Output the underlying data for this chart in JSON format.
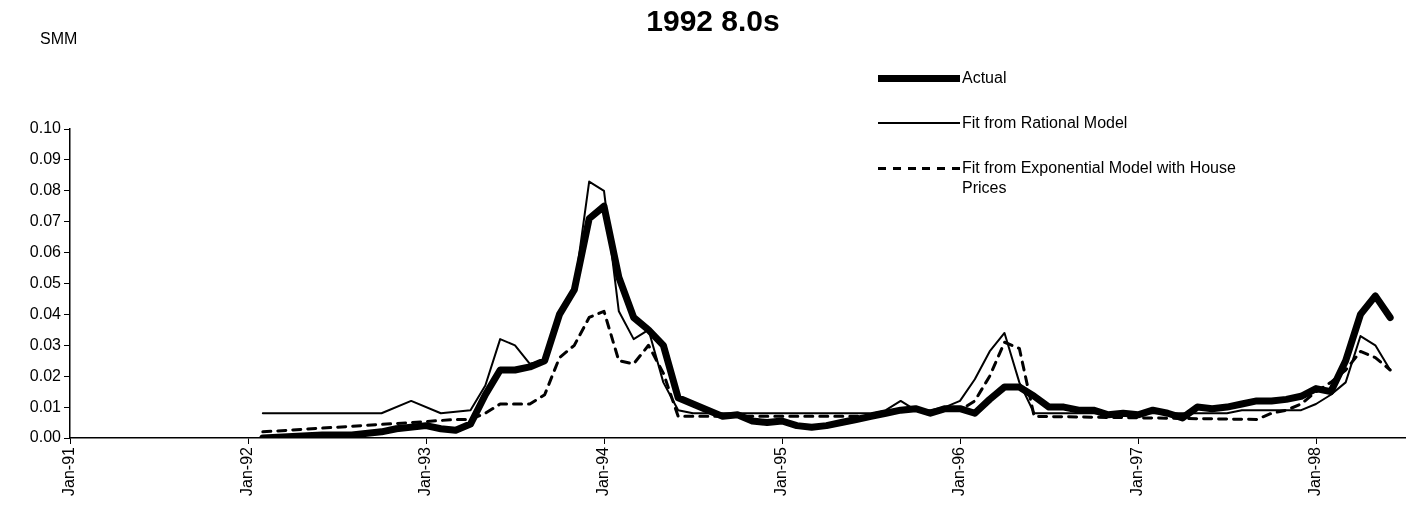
{
  "chart_data": {
    "type": "line",
    "title": "1992 8.0s",
    "ylabel": "SMM",
    "xlim": [
      "1991-01",
      "1998-07"
    ],
    "xticks": [
      {
        "value": "1991-01",
        "label": "Jan-91"
      },
      {
        "value": "1992-01",
        "label": "Jan-92"
      },
      {
        "value": "1993-01",
        "label": "Jan-93"
      },
      {
        "value": "1994-01",
        "label": "Jan-94"
      },
      {
        "value": "1995-01",
        "label": "Jan-95"
      },
      {
        "value": "1996-01",
        "label": "Jan-96"
      },
      {
        "value": "1997-01",
        "label": "Jan-97"
      },
      {
        "value": "1998-01",
        "label": "Jan-98"
      }
    ],
    "ylim": [
      0,
      0.1
    ],
    "yticks": [
      {
        "value": 0,
        "label": "0.00"
      },
      {
        "value": 0.01,
        "label": "0.01"
      },
      {
        "value": 0.02,
        "label": "0.02"
      },
      {
        "value": 0.03,
        "label": "0.03"
      },
      {
        "value": 0.04,
        "label": "0.04"
      },
      {
        "value": 0.05,
        "label": "0.05"
      },
      {
        "value": 0.06,
        "label": "0.06"
      },
      {
        "value": 0.07,
        "label": "0.07"
      },
      {
        "value": 0.08,
        "label": "0.08"
      },
      {
        "value": 0.09,
        "label": "0.09"
      },
      {
        "value": 0.1,
        "label": "0.10"
      }
    ],
    "legend": "top right",
    "marker": "none",
    "series": [
      {
        "name": "Actual",
        "color": "#000000",
        "line_style": "solid",
        "x": [
          "1992-02",
          "1992-04",
          "1992-06",
          "1992-08",
          "1992-10",
          "1992-11",
          "1993-01",
          "1993-02",
          "1993-03",
          "1993-04",
          "1993-05",
          "1993-06",
          "1993-07",
          "1993-08",
          "1993-09",
          "1993-10",
          "1993-11",
          "1993-12",
          "1994-01",
          "1994-02",
          "1994-03",
          "1994-04",
          "1994-05",
          "1994-06",
          "1994-07",
          "1994-08",
          "1994-09",
          "1994-10",
          "1994-11",
          "1994-12",
          "1995-01",
          "1995-02",
          "1995-03",
          "1995-04",
          "1995-05",
          "1995-06",
          "1995-07",
          "1995-08",
          "1995-09",
          "1995-10",
          "1995-11",
          "1995-12",
          "1996-01",
          "1996-02",
          "1996-03",
          "1996-04",
          "1996-05",
          "1996-06",
          "1996-07",
          "1996-08",
          "1996-09",
          "1996-10",
          "1996-11",
          "1996-12",
          "1997-01",
          "1997-02",
          "1997-03",
          "1997-04",
          "1997-05",
          "1997-06",
          "1997-07",
          "1997-08",
          "1997-09",
          "1997-10",
          "1997-11",
          "1997-12",
          "1998-01",
          "1998-02",
          "1998-03",
          "1998-04",
          "1998-05",
          "1998-06"
        ],
        "values": [
          0.0,
          0.0005,
          0.001,
          0.001,
          0.002,
          0.003,
          0.004,
          0.003,
          0.0025,
          0.0045,
          0.014,
          0.022,
          0.022,
          0.023,
          0.025,
          0.04,
          0.048,
          0.071,
          0.075,
          0.052,
          0.039,
          0.035,
          0.03,
          0.013,
          0.011,
          0.009,
          0.007,
          0.0075,
          0.0055,
          0.005,
          0.0055,
          0.004,
          0.0035,
          0.004,
          0.005,
          0.006,
          0.007,
          0.008,
          0.009,
          0.0095,
          0.008,
          0.0095,
          0.0095,
          0.008,
          0.0125,
          0.0165,
          0.0165,
          0.0135,
          0.01,
          0.01,
          0.009,
          0.009,
          0.0075,
          0.008,
          0.0075,
          0.009,
          0.008,
          0.0065,
          0.01,
          0.0095,
          0.01,
          0.011,
          0.012,
          0.012,
          0.0125,
          0.0135,
          0.016,
          0.015,
          0.025,
          0.04,
          0.046,
          0.039
        ]
      },
      {
        "name": "Fit from Rational Model",
        "color": "#000000",
        "line_style": "solid",
        "x": [
          "1992-02",
          "1992-10",
          "1992-12",
          "1993-02",
          "1993-04",
          "1993-05",
          "1993-06",
          "1993-07",
          "1993-08",
          "1993-09",
          "1993-10",
          "1993-11",
          "1993-12",
          "1994-01",
          "1994-02",
          "1994-03",
          "1994-04",
          "1994-05",
          "1994-06",
          "1994-07",
          "1995-07",
          "1995-08",
          "1995-09",
          "1995-10",
          "1995-11",
          "1995-12",
          "1996-01",
          "1996-02",
          "1996-03",
          "1996-04",
          "1996-05",
          "1996-06",
          "1997-07",
          "1997-08",
          "1997-12",
          "1998-01",
          "1998-02",
          "1998-03",
          "1998-04",
          "1998-05",
          "1998-06"
        ],
        "values": [
          0.008,
          0.008,
          0.012,
          0.008,
          0.009,
          0.017,
          0.032,
          0.03,
          0.024,
          0.025,
          0.04,
          0.048,
          0.083,
          0.08,
          0.041,
          0.032,
          0.035,
          0.018,
          0.009,
          0.008,
          0.008,
          0.009,
          0.012,
          0.009,
          0.009,
          0.01,
          0.012,
          0.019,
          0.028,
          0.034,
          0.018,
          0.008,
          0.008,
          0.009,
          0.009,
          0.011,
          0.014,
          0.018,
          0.033,
          0.03,
          0.022
        ]
      },
      {
        "name": "Fit from Exponential Model with House Prices",
        "color": "#000000",
        "line_style": "dashed",
        "x": [
          "1992-02",
          "1992-12",
          "1993-03",
          "1993-04",
          "1993-05",
          "1993-06",
          "1993-07",
          "1993-08",
          "1993-09",
          "1993-10",
          "1993-11",
          "1993-12",
          "1994-01",
          "1994-02",
          "1994-03",
          "1994-04",
          "1994-05",
          "1994-06",
          "1995-07",
          "1995-08",
          "1995-09",
          "1995-10",
          "1995-11",
          "1995-12",
          "1996-01",
          "1996-02",
          "1996-03",
          "1996-04",
          "1996-05",
          "1996-06",
          "1997-09",
          "1997-10",
          "1997-11",
          "1997-12",
          "1998-01",
          "1998-02",
          "1998-03",
          "1998-04",
          "1998-05",
          "1998-06"
        ],
        "values": [
          0.002,
          0.005,
          0.006,
          0.006,
          0.008,
          0.011,
          0.011,
          0.011,
          0.014,
          0.026,
          0.03,
          0.039,
          0.041,
          0.025,
          0.024,
          0.03,
          0.021,
          0.007,
          0.007,
          0.008,
          0.009,
          0.009,
          0.008,
          0.009,
          0.009,
          0.012,
          0.02,
          0.031,
          0.029,
          0.007,
          0.006,
          0.008,
          0.009,
          0.011,
          0.015,
          0.018,
          0.022,
          0.028,
          0.026,
          0.022
        ]
      }
    ]
  }
}
